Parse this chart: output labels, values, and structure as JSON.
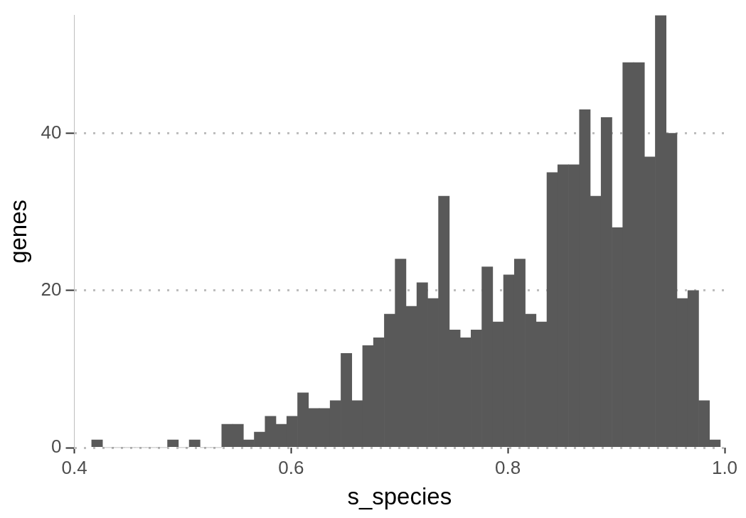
{
  "chart_data": {
    "type": "histogram",
    "xlabel": "s_species",
    "ylabel": "genes",
    "bins": [
      0.416,
      0.426,
      0.436,
      0.446,
      0.456,
      0.466,
      0.476,
      0.486,
      0.496,
      0.506,
      0.516,
      0.526,
      0.536,
      0.546,
      0.556,
      0.566,
      0.576,
      0.586,
      0.596,
      0.606,
      0.616,
      0.626,
      0.636,
      0.646,
      0.656,
      0.666,
      0.676,
      0.686,
      0.696,
      0.706,
      0.716,
      0.726,
      0.736,
      0.746,
      0.756,
      0.766,
      0.776,
      0.786,
      0.796,
      0.806,
      0.816,
      0.826,
      0.836,
      0.846,
      0.856,
      0.866,
      0.876,
      0.886,
      0.896,
      0.906,
      0.916,
      0.926,
      0.936,
      0.946,
      0.956,
      0.966,
      0.976,
      0.986,
      0.996
    ],
    "values": [
      1,
      0,
      0,
      0,
      0,
      0,
      0,
      1,
      0,
      1,
      0,
      0,
      3,
      3,
      1,
      2,
      4,
      3,
      4,
      7,
      5,
      5,
      6,
      12,
      6,
      13,
      14,
      17,
      24,
      18,
      21,
      19,
      32,
      15,
      14,
      15,
      23,
      16,
      22,
      24,
      17,
      16,
      35,
      36,
      36,
      43,
      32,
      42,
      28,
      49,
      49,
      37,
      55,
      40,
      19,
      20,
      6,
      1
    ],
    "color": "#595959",
    "xlim": [
      0.4,
      1.0
    ],
    "xticks": [
      {
        "value": 0.4,
        "label": "0.4"
      },
      {
        "value": 0.6,
        "label": "0.6"
      },
      {
        "value": 0.8,
        "label": "0.8"
      },
      {
        "value": 1.0,
        "label": "1.0"
      }
    ],
    "ylim": [
      0,
      55
    ],
    "yticks": [
      0,
      20,
      40
    ],
    "grid": "y"
  }
}
